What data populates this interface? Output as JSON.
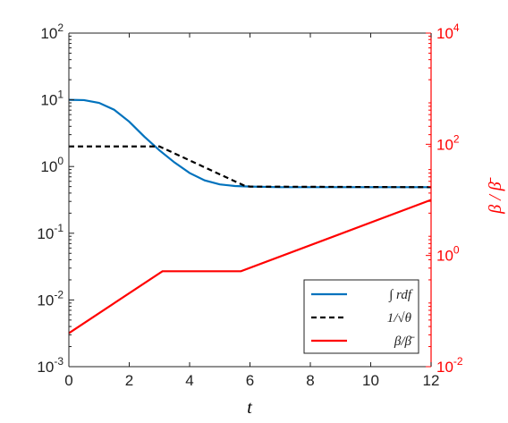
{
  "chart_data": {
    "type": "line",
    "xlabel": "t",
    "ylabel_right": "β / β̄",
    "x_range": [
      0,
      12
    ],
    "y_left_range": [
      0.001,
      100
    ],
    "y_right_range": [
      0.01,
      10000
    ],
    "y_left_scale": "log",
    "y_right_scale": "log",
    "x_ticks": [
      "0",
      "2",
      "4",
      "6",
      "8",
      "10",
      "12"
    ],
    "y_left_ticks": [
      {
        "base": "10",
        "exp": "2",
        "value": 100
      },
      {
        "base": "10",
        "exp": "1",
        "value": 10
      },
      {
        "base": "10",
        "exp": "0",
        "value": 1
      },
      {
        "base": "10",
        "exp": "-1",
        "value": 0.1
      },
      {
        "base": "10",
        "exp": "-2",
        "value": 0.01
      },
      {
        "base": "10",
        "exp": "-3",
        "value": 0.001
      }
    ],
    "y_right_ticks": [
      {
        "base": "10",
        "exp": "4",
        "value": 10000
      },
      {
        "base": "10",
        "exp": "2",
        "value": 100
      },
      {
        "base": "10",
        "exp": "0",
        "value": 1
      },
      {
        "base": "10",
        "exp": "-2",
        "value": 0.01
      }
    ],
    "grid": false,
    "legend_position": "bottom-right",
    "series": [
      {
        "name": "∫ rdf",
        "axis": "left",
        "color": "#0072bd",
        "dash": "solid",
        "points": [
          [
            0,
            10
          ],
          [
            0.5,
            9.9
          ],
          [
            1,
            9.0
          ],
          [
            1.5,
            7.1
          ],
          [
            2,
            4.7
          ],
          [
            2.5,
            2.8
          ],
          [
            3,
            1.75
          ],
          [
            3.5,
            1.15
          ],
          [
            4,
            0.8
          ],
          [
            4.5,
            0.62
          ],
          [
            5,
            0.54
          ],
          [
            5.5,
            0.51
          ],
          [
            6,
            0.5
          ],
          [
            7,
            0.49
          ],
          [
            8,
            0.49
          ],
          [
            10,
            0.49
          ],
          [
            12,
            0.49
          ]
        ]
      },
      {
        "name": "1/√θ",
        "axis": "left",
        "color": "#000000",
        "dash": "dashed",
        "points": [
          [
            0,
            2.0
          ],
          [
            3,
            2.0
          ],
          [
            5.8,
            0.52
          ],
          [
            6,
            0.5
          ],
          [
            12,
            0.49
          ]
        ]
      },
      {
        "name": "β/β̄",
        "axis": "right",
        "color": "#ff0000",
        "dash": "solid",
        "points": [
          [
            0,
            0.04
          ],
          [
            3.1,
            0.52
          ],
          [
            5.7,
            0.52
          ],
          [
            12,
            10
          ]
        ]
      }
    ]
  }
}
